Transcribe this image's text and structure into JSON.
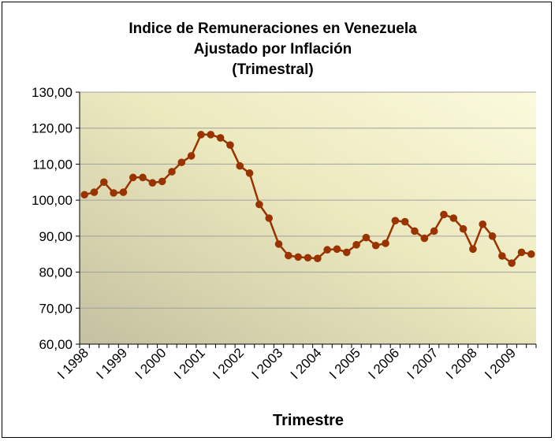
{
  "chart_data": {
    "type": "line",
    "title_lines": [
      "Indice de Remuneraciones en Venezuela",
      "Ajustado por Inflación",
      "(Trimestral)"
    ],
    "xlabel": "Trimestre",
    "ylabel": "",
    "ylim": [
      60,
      130
    ],
    "y_ticks": [
      "60,00",
      "70,00",
      "80,00",
      "90,00",
      "100,00",
      "110,00",
      "120,00",
      "130,00"
    ],
    "x_tick_labels": [
      "I 1998",
      "I 1999",
      "I 2000",
      "I 2001",
      "I 2002",
      "I 2003",
      "I 2004",
      "I 2005",
      "I 2006",
      "I 2007",
      "I 2008",
      "I 2009"
    ],
    "grid": true,
    "legend": "none",
    "colors": {
      "line": "#993300",
      "marker": "#993300",
      "plot_bg_light": "#fbfadc",
      "plot_bg_dark": "#c8c4a0",
      "grid": "#a0a0a0"
    },
    "series": [
      {
        "values": [
          101.5,
          102.2,
          105.0,
          102.0,
          102.2,
          106.3,
          106.3,
          104.8,
          105.2,
          107.9,
          110.5,
          112.3,
          118.2,
          118.2,
          117.3,
          115.3,
          109.5,
          107.5,
          98.8,
          95.0,
          87.8,
          84.6,
          84.2,
          84.0,
          83.8,
          86.2,
          86.4,
          85.5,
          87.6,
          89.6,
          87.4,
          88.0,
          94.3,
          94.0,
          91.4,
          89.4,
          91.4,
          96.0,
          95.0,
          92.0,
          86.4,
          93.3,
          90.0,
          84.5,
          82.5,
          85.5,
          85.0
        ]
      }
    ]
  }
}
